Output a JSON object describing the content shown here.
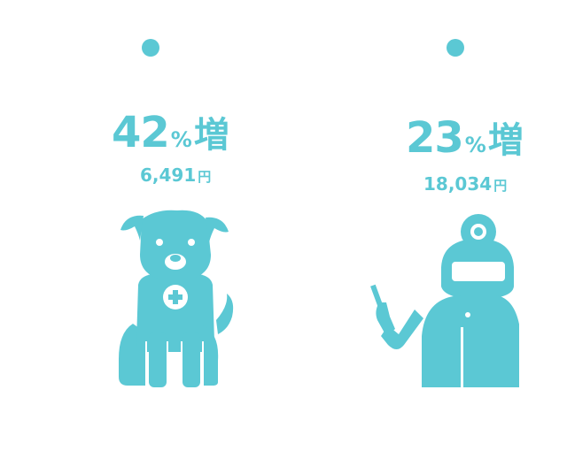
{
  "colors": {
    "accent": "#5bc8d4",
    "background": "#ffffff"
  },
  "stats": [
    {
      "icon": "dog-icon",
      "increase_number": "42",
      "increase_percent": "%",
      "increase_label": "増",
      "amount_value": "6,491",
      "amount_unit": "円"
    },
    {
      "icon": "dentist-icon",
      "increase_number": "23",
      "increase_percent": "%",
      "increase_label": "増",
      "amount_value": "18,034",
      "amount_unit": "円"
    }
  ]
}
